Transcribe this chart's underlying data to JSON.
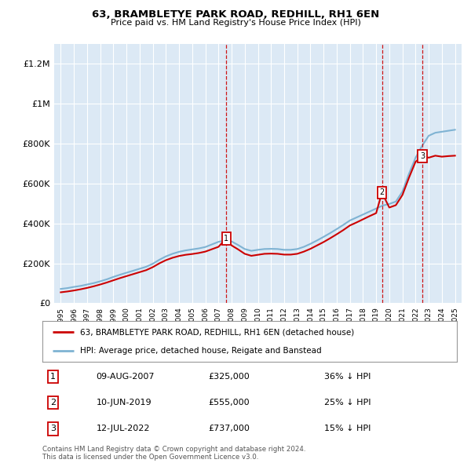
{
  "title": "63, BRAMBLETYE PARK ROAD, REDHILL, RH1 6EN",
  "subtitle": "Price paid vs. HM Land Registry's House Price Index (HPI)",
  "legend_line1": "63, BRAMBLETYE PARK ROAD, REDHILL, RH1 6EN (detached house)",
  "legend_line2": "HPI: Average price, detached house, Reigate and Banstead",
  "footer": "Contains HM Land Registry data © Crown copyright and database right 2024.\nThis data is licensed under the Open Government Licence v3.0.",
  "sale_color": "#cc0000",
  "hpi_color": "#7fb3d3",
  "background_color": "#dce9f5",
  "sale_dates": [
    2007.6,
    2019.44,
    2022.53
  ],
  "sale_prices": [
    325000,
    555000,
    737000
  ],
  "sale_labels": [
    "1",
    "2",
    "3"
  ],
  "table_rows": [
    [
      "1",
      "09-AUG-2007",
      "£325,000",
      "36% ↓ HPI"
    ],
    [
      "2",
      "10-JUN-2019",
      "£555,000",
      "25% ↓ HPI"
    ],
    [
      "3",
      "12-JUL-2022",
      "£737,000",
      "15% ↓ HPI"
    ]
  ],
  "ylim": [
    0,
    1300000
  ],
  "yticks": [
    0,
    200000,
    400000,
    600000,
    800000,
    1000000,
    1200000
  ],
  "ytick_labels": [
    "£0",
    "£200K",
    "£400K",
    "£600K",
    "£800K",
    "£1M",
    "£1.2M"
  ],
  "hpi_years": [
    1995.0,
    1995.5,
    1996.0,
    1996.5,
    1997.0,
    1997.5,
    1998.0,
    1998.5,
    1999.0,
    1999.5,
    2000.0,
    2000.5,
    2001.0,
    2001.5,
    2002.0,
    2002.5,
    2003.0,
    2003.5,
    2004.0,
    2004.5,
    2005.0,
    2005.5,
    2006.0,
    2006.5,
    2007.0,
    2007.5,
    2008.0,
    2008.5,
    2009.0,
    2009.5,
    2010.0,
    2010.5,
    2011.0,
    2011.5,
    2012.0,
    2012.5,
    2013.0,
    2013.5,
    2014.0,
    2014.5,
    2015.0,
    2015.5,
    2016.0,
    2016.5,
    2017.0,
    2017.5,
    2018.0,
    2018.5,
    2019.0,
    2019.5,
    2020.0,
    2020.5,
    2021.0,
    2021.5,
    2022.0,
    2022.5,
    2023.0,
    2023.5,
    2024.0,
    2024.5,
    2025.0
  ],
  "hpi_values": [
    72000,
    76000,
    82000,
    87000,
    94000,
    101000,
    110000,
    120000,
    132000,
    143000,
    153000,
    163000,
    173000,
    183000,
    198000,
    218000,
    235000,
    248000,
    258000,
    265000,
    270000,
    275000,
    282000,
    295000,
    308000,
    315000,
    310000,
    292000,
    272000,
    263000,
    268000,
    272000,
    273000,
    272000,
    268000,
    268000,
    272000,
    283000,
    298000,
    315000,
    333000,
    352000,
    372000,
    393000,
    415000,
    430000,
    445000,
    460000,
    475000,
    490000,
    498000,
    510000,
    560000,
    650000,
    730000,
    790000,
    840000,
    855000,
    860000,
    865000,
    870000
  ],
  "sale_line_years": [
    1995.0,
    1995.5,
    1996.0,
    1996.5,
    1997.0,
    1997.5,
    1998.0,
    1998.5,
    1999.0,
    1999.5,
    2000.0,
    2000.5,
    2001.0,
    2001.5,
    2002.0,
    2002.5,
    2003.0,
    2003.5,
    2004.0,
    2004.5,
    2005.0,
    2005.5,
    2006.0,
    2006.5,
    2007.0,
    2007.6,
    2008.0,
    2008.5,
    2009.0,
    2009.5,
    2010.0,
    2010.5,
    2011.0,
    2011.5,
    2012.0,
    2012.5,
    2013.0,
    2013.5,
    2014.0,
    2014.5,
    2015.0,
    2015.5,
    2016.0,
    2016.5,
    2017.0,
    2017.5,
    2018.0,
    2018.5,
    2019.0,
    2019.44,
    2020.0,
    2020.5,
    2021.0,
    2021.5,
    2022.0,
    2022.53,
    2023.0,
    2023.5,
    2024.0,
    2024.5,
    2025.0
  ],
  "sale_line_values": [
    55000,
    59000,
    64000,
    70000,
    77000,
    85000,
    94000,
    104000,
    115000,
    126000,
    136000,
    146000,
    156000,
    166000,
    181000,
    200000,
    216000,
    228000,
    237000,
    243000,
    247000,
    252000,
    259000,
    271000,
    283000,
    325000,
    290000,
    270000,
    248000,
    238000,
    243000,
    248000,
    249000,
    248000,
    244000,
    244000,
    248000,
    259000,
    273000,
    290000,
    307000,
    326000,
    346000,
    367000,
    390000,
    405000,
    421000,
    437000,
    452000,
    555000,
    480000,
    492000,
    543000,
    630000,
    710000,
    737000,
    730000,
    740000,
    735000,
    738000,
    740000
  ],
  "xtick_years": [
    1995,
    1996,
    1997,
    1998,
    1999,
    2000,
    2001,
    2002,
    2003,
    2004,
    2005,
    2006,
    2007,
    2008,
    2009,
    2010,
    2011,
    2012,
    2013,
    2014,
    2015,
    2016,
    2017,
    2018,
    2019,
    2020,
    2021,
    2022,
    2023,
    2024,
    2025
  ]
}
